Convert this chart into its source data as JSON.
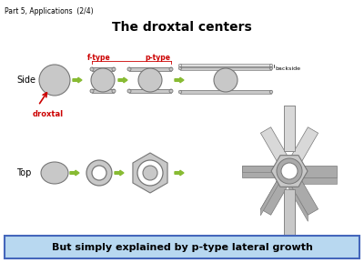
{
  "title": "The droxtal centers",
  "subtitle": "Part 5, Applications  (2/4)",
  "footer": "But simply explained by p-type lateral growth",
  "footer_bg": "#b8d8f0",
  "footer_border": "#4466bb",
  "bg_color": "#ffffff",
  "label_side": "Side",
  "label_top": "Top",
  "label_droxtal": "droxtal",
  "label_ftype": "f-type",
  "label_ptype": "p-type",
  "label_backside": "backside",
  "arrow_color": "#88bb33",
  "droxtal_arrow_color": "#cc0000",
  "shape_fill": "#c8c8c8",
  "shape_edge": "#777777",
  "shape_fill_light": "#d8d8d8",
  "shape_fill_dark": "#aaaaaa",
  "text_color": "#000000",
  "red_text": "#cc0000"
}
